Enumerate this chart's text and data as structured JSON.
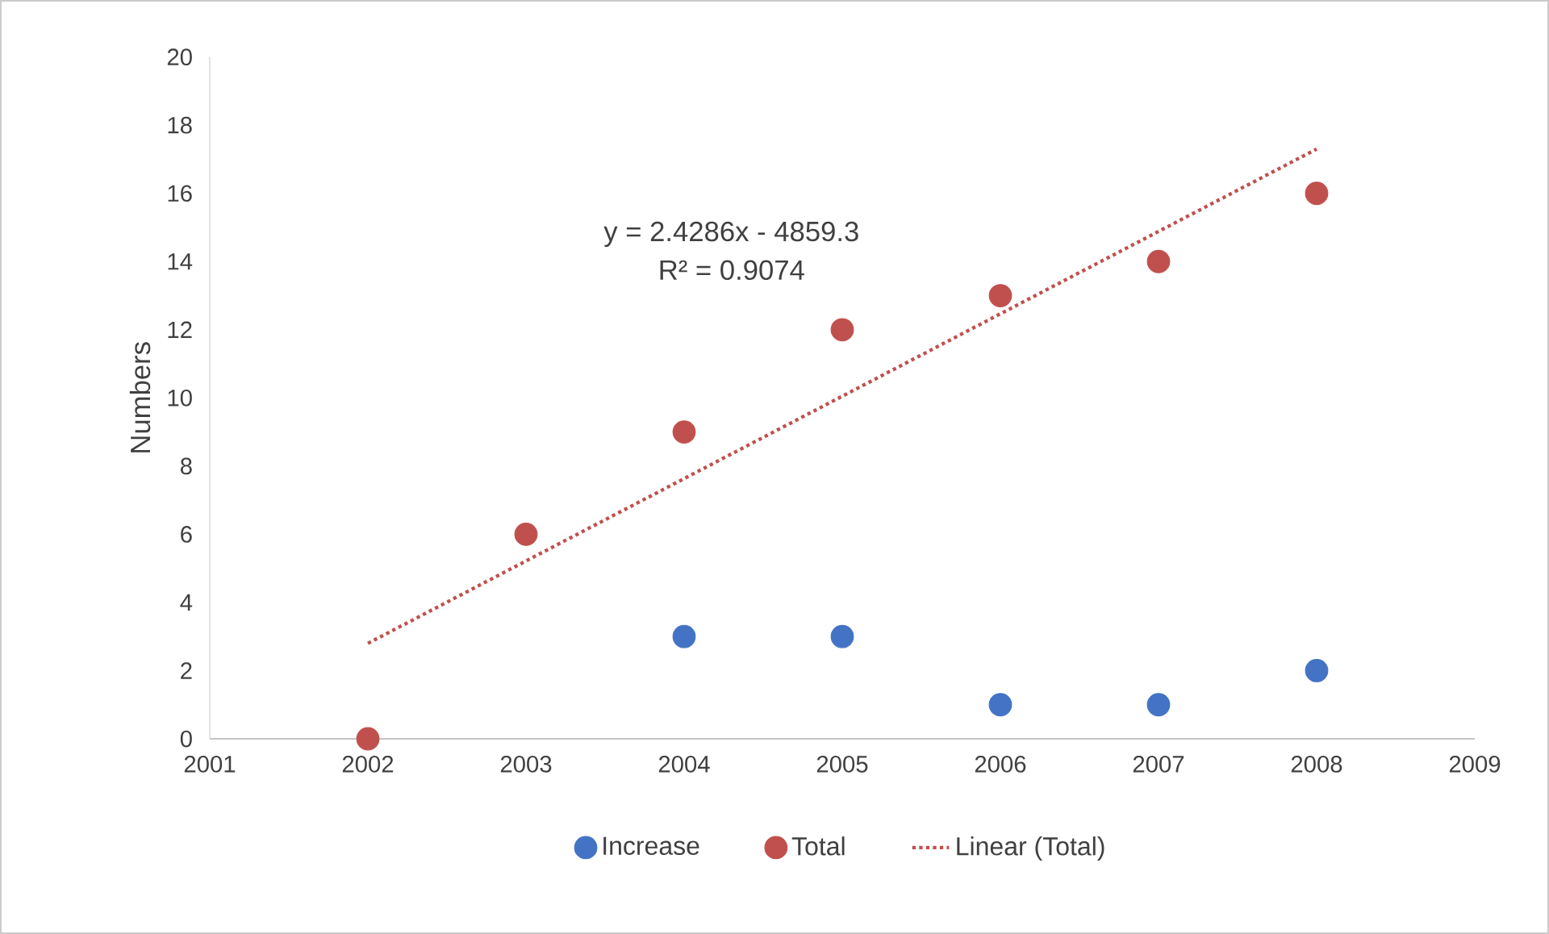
{
  "chart_data": {
    "type": "scatter",
    "ylabel": "Numbers",
    "xlim": [
      2001,
      2009
    ],
    "xticks": [
      2001,
      2002,
      2003,
      2004,
      2005,
      2006,
      2007,
      2008,
      2009
    ],
    "ylim": [
      0,
      20
    ],
    "yticks": [
      0,
      2,
      4,
      6,
      8,
      10,
      12,
      14,
      16,
      18,
      20
    ],
    "grid": false,
    "legend": "bottom",
    "annotations": [
      "y = 2.4286x - 4859.3",
      "R² = 0.9074"
    ],
    "series": [
      {
        "name": "Increase",
        "marker": "circle",
        "color": "#4472c4",
        "x": [
          2004,
          2005,
          2006,
          2007,
          2008
        ],
        "values": [
          3,
          3,
          1,
          1,
          2
        ]
      },
      {
        "name": "Total",
        "marker": "circle",
        "color": "#c0504d",
        "x": [
          2002,
          2003,
          2004,
          2005,
          2006,
          2007,
          2008
        ],
        "values": [
          0,
          6,
          9,
          12,
          13,
          14,
          16
        ]
      },
      {
        "name": "Linear (Total)",
        "type": "line",
        "marker": "none",
        "line_style": "dotted",
        "color": "#c0504d",
        "x": [
          2002,
          2008
        ],
        "values": [
          2.8,
          17.3
        ]
      }
    ]
  }
}
